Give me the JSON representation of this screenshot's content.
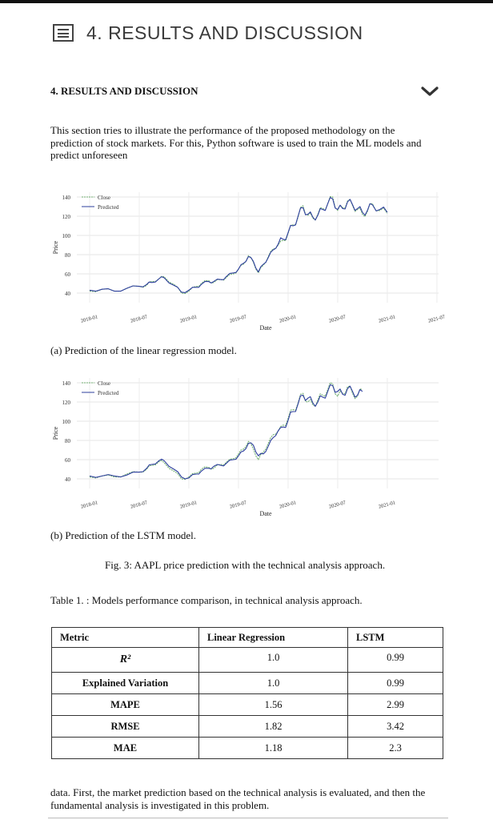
{
  "header": {
    "title": "4. RESULTS AND DISCUSSION",
    "icon": "document-list-icon"
  },
  "section": {
    "title": "4. RESULTS AND DISCUSSION",
    "toggle_icon": "chevron-down-icon"
  },
  "intro_text": "This section tries to illustrate the performance of the proposed methodology on the prediction of stock markets. For this, Python software is used to train the ML models and predict unforeseen",
  "chart_data": [
    {
      "type": "line",
      "title": "",
      "xlabel": "Date",
      "ylabel": "Price",
      "ylim": [
        30,
        145
      ],
      "yticks": [
        "40",
        "60",
        "80",
        "100",
        "120",
        "140"
      ],
      "xticks": [
        "2018-01",
        "2018-07",
        "2019-01",
        "2019-07",
        "2020-01",
        "2020-07",
        "2021-01",
        "2021-07"
      ],
      "legend": [
        "Close",
        "Predicted"
      ],
      "legend_position": "top-left",
      "colors": {
        "close": "#6fae6f",
        "predicted": "#2e3f9e"
      },
      "x": [
        0,
        0.25,
        0.5,
        0.75,
        1.0,
        1.15,
        1.25,
        1.4,
        1.5,
        1.7,
        1.85,
        2.0,
        2.15,
        2.25,
        2.4,
        2.5,
        2.65,
        2.75,
        2.9,
        3.0,
        3.1,
        3.2,
        3.3,
        3.4,
        3.5,
        3.6,
        3.7,
        3.8,
        3.9,
        4.0,
        4.1,
        4.2,
        4.3,
        4.4,
        4.5,
        4.6,
        4.7,
        4.8,
        4.9,
        5.0,
        5.1,
        5.2,
        5.3,
        5.4,
        5.5,
        5.6,
        5.7,
        5.85,
        6.0
      ],
      "series": [
        {
          "name": "Close",
          "values": [
            42,
            44,
            42,
            45,
            47,
            48,
            52,
            55,
            57,
            49,
            40,
            42,
            47,
            50,
            53,
            51,
            54,
            56,
            60,
            65,
            70,
            79,
            72,
            61,
            69,
            78,
            86,
            90,
            95,
            102,
            111,
            119,
            131,
            121,
            118,
            122,
            128,
            133,
            140,
            126,
            129,
            136,
            131,
            127,
            122,
            125,
            133,
            126,
            123
          ]
        },
        {
          "name": "Predicted",
          "values": [
            43,
            44,
            42,
            45,
            47,
            49,
            51,
            55,
            56,
            48,
            41,
            43,
            46,
            49,
            52,
            52,
            54,
            57,
            61,
            65,
            71,
            78,
            73,
            62,
            70,
            77,
            85,
            91,
            96,
            103,
            110,
            120,
            129,
            122,
            119,
            121,
            127,
            133,
            138,
            127,
            128,
            135,
            132,
            128,
            124,
            126,
            132,
            127,
            124
          ]
        }
      ]
    },
    {
      "type": "line",
      "title": "",
      "xlabel": "Date",
      "ylabel": "Price",
      "ylim": [
        30,
        145
      ],
      "yticks": [
        "40",
        "60",
        "80",
        "100",
        "120",
        "140"
      ],
      "xticks": [
        "2018-01",
        "2018-07",
        "2019-01",
        "2019-07",
        "2020-01",
        "2020-07",
        "2021-01"
      ],
      "legend": [
        "Close",
        "Predicted"
      ],
      "legend_position": "top-left",
      "colors": {
        "close": "#6fae6f",
        "predicted": "#2e3f9e"
      },
      "x": [
        0,
        0.25,
        0.5,
        0.75,
        1.0,
        1.15,
        1.25,
        1.4,
        1.5,
        1.7,
        1.85,
        2.0,
        2.15,
        2.25,
        2.4,
        2.5,
        2.65,
        2.75,
        2.9,
        3.0,
        3.1,
        3.2,
        3.3,
        3.4,
        3.5,
        3.6,
        3.7,
        3.8,
        3.9,
        4.0,
        4.1,
        4.2,
        4.3,
        4.4,
        4.5,
        4.6,
        4.7,
        4.8,
        4.9,
        5.0,
        5.1,
        5.2,
        5.3,
        5.4,
        5.5
      ],
      "series": [
        {
          "name": "Close",
          "values": [
            42,
            43,
            42,
            45,
            47,
            50,
            54,
            58,
            57,
            48,
            40,
            42,
            46,
            50,
            52,
            51,
            55,
            57,
            61,
            66,
            71,
            79,
            71,
            60,
            68,
            77,
            86,
            90,
            96,
            103,
            112,
            119,
            129,
            120,
            117,
            122,
            127,
            133,
            139,
            126,
            129,
            136,
            129,
            126,
            133
          ]
        },
        {
          "name": "Predicted",
          "values": [
            43,
            43,
            43,
            44,
            47,
            51,
            55,
            59,
            59,
            50,
            42,
            41,
            45,
            48,
            51,
            53,
            54,
            56,
            60,
            64,
            69,
            77,
            75,
            64,
            66,
            74,
            83,
            90,
            94,
            101,
            110,
            118,
            127,
            124,
            119,
            120,
            125,
            131,
            137,
            131,
            128,
            134,
            131,
            127,
            131
          ]
        }
      ]
    }
  ],
  "caption_a": "(a) Prediction of the linear regression model.",
  "caption_b": "(b) Prediction of the LSTM model.",
  "figure_caption": "Fig. 3: AAPL price prediction with the technical analysis approach.",
  "table_caption": "Table 1. : Models performance comparison, in technical analysis approach.",
  "table": {
    "headers": [
      "Metric",
      "Linear Regression",
      "LSTM"
    ],
    "rows": [
      {
        "metric": "R²",
        "lr": "1.0",
        "lstm": "0.99"
      },
      {
        "metric": "Explained Variation",
        "lr": "1.0",
        "lstm": "0.99"
      },
      {
        "metric": "MAPE",
        "lr": "1.56",
        "lstm": "2.99"
      },
      {
        "metric": "RMSE",
        "lr": "1.82",
        "lstm": "3.42"
      },
      {
        "metric": "MAE",
        "lr": "1.18",
        "lstm": "2.3"
      }
    ]
  },
  "closing_text": "data. First, the market prediction based on the technical analysis is evaluated, and then the fundamental analysis is investigated in this problem."
}
